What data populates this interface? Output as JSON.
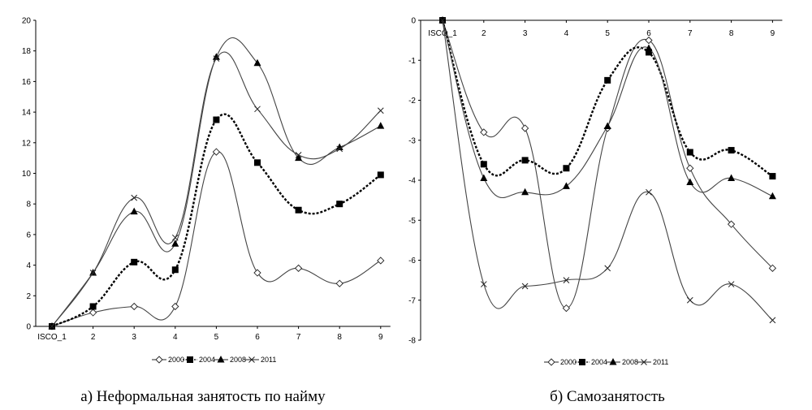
{
  "chart_data": [
    {
      "type": "line",
      "caption": "а) Неформальная занятость по найму",
      "categories": [
        "ISCO_1",
        "2",
        "3",
        "4",
        "5",
        "6",
        "7",
        "8",
        "9"
      ],
      "ylim": [
        0,
        20
      ],
      "yticks": [
        "0",
        "2",
        "4",
        "6",
        "8",
        "10",
        "12",
        "14",
        "16",
        "18",
        "20"
      ],
      "legend_position": "bottom",
      "grid": false,
      "series": [
        {
          "name": "2000",
          "marker": "diamond-open",
          "style": "solid",
          "values": [
            0,
            0.9,
            1.3,
            1.3,
            11.4,
            3.5,
            3.8,
            2.8,
            4.3
          ]
        },
        {
          "name": "2004",
          "marker": "square-filled",
          "style": "dotted",
          "values": [
            0,
            1.3,
            4.2,
            3.7,
            13.5,
            10.7,
            7.6,
            8.0,
            9.9
          ]
        },
        {
          "name": "2008",
          "marker": "triangle-filled",
          "style": "solid",
          "values": [
            0,
            3.5,
            7.5,
            5.4,
            17.6,
            17.2,
            11.0,
            11.7,
            13.1
          ]
        },
        {
          "name": "2011",
          "marker": "cross",
          "style": "solid",
          "values": [
            0,
            3.5,
            8.4,
            5.8,
            17.5,
            14.2,
            11.2,
            11.6,
            14.1
          ]
        }
      ]
    },
    {
      "type": "line",
      "caption": "б) Самозанятость",
      "categories": [
        "ISCO_1",
        "2",
        "3",
        "4",
        "5",
        "6",
        "7",
        "8",
        "9"
      ],
      "ylim": [
        -8,
        0
      ],
      "yticks": [
        "0",
        "-1",
        "-2",
        "-3",
        "-4",
        "-5",
        "-6",
        "-7",
        "-8"
      ],
      "legend_position": "bottom",
      "grid": false,
      "series": [
        {
          "name": "2000",
          "marker": "diamond-open",
          "style": "solid",
          "values": [
            0,
            -2.8,
            -2.7,
            -7.2,
            -2.7,
            -0.5,
            -3.7,
            -5.1,
            -6.2
          ]
        },
        {
          "name": "2004",
          "marker": "square-filled",
          "style": "dotted",
          "values": [
            0,
            -3.6,
            -3.5,
            -3.7,
            -1.5,
            -0.8,
            -3.3,
            -3.25,
            -3.9
          ]
        },
        {
          "name": "2008",
          "marker": "triangle-filled",
          "style": "solid",
          "values": [
            0,
            -3.95,
            -4.3,
            -4.15,
            -2.65,
            -0.7,
            -4.05,
            -3.95,
            -4.4
          ]
        },
        {
          "name": "2011",
          "marker": "cross",
          "style": "solid",
          "values": [
            0,
            -6.6,
            -6.65,
            -6.5,
            -6.2,
            -4.3,
            -7.0,
            -6.6,
            -7.5
          ]
        }
      ]
    }
  ]
}
